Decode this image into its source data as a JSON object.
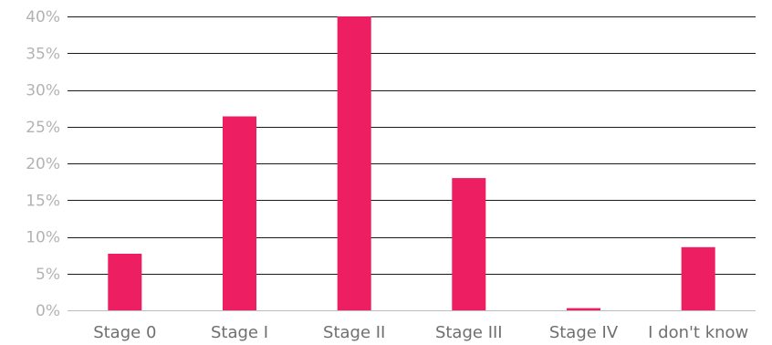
{
  "chart_data": {
    "type": "bar",
    "categories": [
      "Stage 0",
      "Stage I",
      "Stage II",
      "Stage III",
      "Stage IV",
      "I don't know"
    ],
    "values": [
      7.7,
      26.4,
      40.0,
      18.0,
      0.3,
      8.6
    ],
    "y_ticks": [
      0,
      5,
      10,
      15,
      20,
      25,
      30,
      35,
      40
    ],
    "y_tick_labels": [
      "0%",
      "5%",
      "10%",
      "15%",
      "20%",
      "25%",
      "30%",
      "35%",
      "40%"
    ],
    "ylim": [
      0,
      40
    ],
    "grid": true,
    "legend": "none",
    "bar_color": "#ed1e61"
  }
}
